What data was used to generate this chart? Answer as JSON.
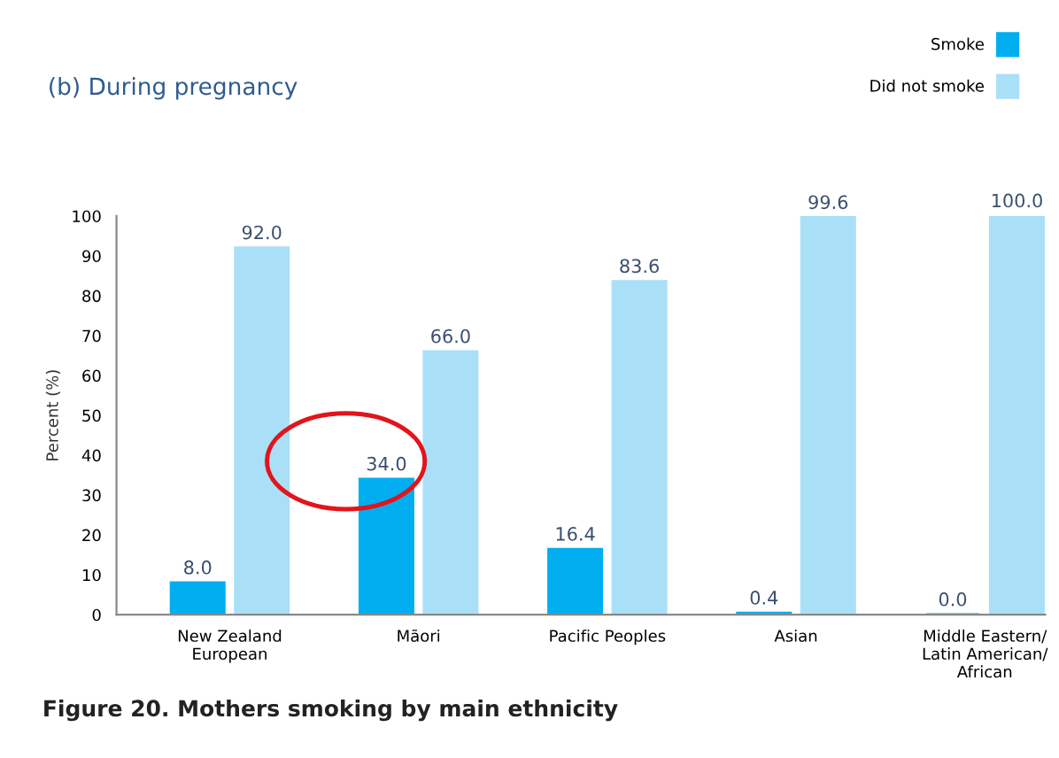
{
  "chart_data": {
    "type": "bar",
    "title": "(b) During pregnancy",
    "categories": [
      "New Zealand\nEuropean",
      "Māori",
      "Pacific Peoples",
      "Asian",
      "Middle Eastern/\nLatin American/\nAfrican"
    ],
    "series": [
      {
        "name": "Smoke",
        "color": "#00aeef",
        "values": [
          8.0,
          34.0,
          16.4,
          0.4,
          0.0
        ],
        "value_labels": [
          "8.0",
          "34.0",
          "16.4",
          "0.4",
          "0.0"
        ]
      },
      {
        "name": "Did not smoke",
        "color": "#a9e0f8",
        "values": [
          92.0,
          66.0,
          83.6,
          99.6,
          100.0
        ],
        "value_labels": [
          "92.0",
          "66.0",
          "83.6",
          "99.6",
          "100.0"
        ]
      }
    ],
    "ylabel": "Percent (%)",
    "ylim": [
      0,
      100
    ],
    "yticks": [
      0,
      10,
      20,
      30,
      40,
      50,
      60,
      70,
      80,
      90,
      100
    ],
    "legend": "top right",
    "grid": false,
    "annotations": [
      "Figure 20. Mothers smoking by main ethnicity"
    ]
  }
}
